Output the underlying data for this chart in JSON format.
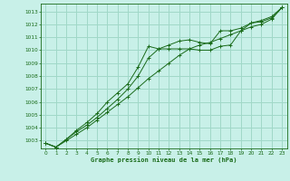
{
  "title": "Graphe pression niveau de la mer (hPa)",
  "bg_color": "#c8f0e8",
  "grid_color": "#a0d8c8",
  "line_color": "#1a6b1a",
  "marker_color": "#1a6b1a",
  "xlim": [
    -0.5,
    23.5
  ],
  "ylim": [
    1002.4,
    1013.6
  ],
  "yticks": [
    1003,
    1004,
    1005,
    1006,
    1007,
    1008,
    1009,
    1010,
    1011,
    1012,
    1013
  ],
  "xticks": [
    0,
    1,
    2,
    3,
    4,
    5,
    6,
    7,
    8,
    9,
    10,
    11,
    12,
    13,
    14,
    15,
    16,
    17,
    18,
    19,
    20,
    21,
    22,
    23
  ],
  "series1_x": [
    0,
    1,
    2,
    3,
    4,
    5,
    6,
    7,
    8,
    9,
    10,
    11,
    12,
    13,
    14,
    15,
    16,
    17,
    18,
    19,
    20,
    21,
    22,
    23
  ],
  "series1_y": [
    1002.8,
    1002.5,
    1003.1,
    1003.8,
    1004.4,
    1005.1,
    1006.0,
    1006.7,
    1007.4,
    1008.7,
    1010.3,
    1010.1,
    1010.1,
    1010.1,
    1010.1,
    1010.0,
    1010.0,
    1010.3,
    1010.4,
    1011.5,
    1012.1,
    1012.2,
    1012.5,
    1013.3
  ],
  "series2_x": [
    0,
    1,
    2,
    3,
    4,
    5,
    6,
    7,
    8,
    9,
    10,
    11,
    12,
    13,
    14,
    15,
    16,
    17,
    18,
    19,
    20,
    21,
    22,
    23
  ],
  "series2_y": [
    1002.8,
    1002.5,
    1003.1,
    1003.7,
    1004.2,
    1004.8,
    1005.5,
    1006.2,
    1007.0,
    1008.0,
    1009.4,
    1010.1,
    1010.4,
    1010.7,
    1010.8,
    1010.6,
    1010.5,
    1011.5,
    1011.5,
    1011.7,
    1012.1,
    1012.3,
    1012.6,
    1013.3
  ],
  "series3_x": [
    0,
    1,
    2,
    3,
    4,
    5,
    6,
    7,
    8,
    9,
    10,
    11,
    12,
    13,
    14,
    15,
    16,
    17,
    18,
    19,
    20,
    21,
    22,
    23
  ],
  "series3_y": [
    1002.8,
    1002.5,
    1003.0,
    1003.5,
    1004.0,
    1004.6,
    1005.2,
    1005.8,
    1006.4,
    1007.1,
    1007.8,
    1008.4,
    1009.0,
    1009.6,
    1010.1,
    1010.4,
    1010.6,
    1010.9,
    1011.2,
    1011.5,
    1011.8,
    1012.0,
    1012.4,
    1013.3
  ]
}
